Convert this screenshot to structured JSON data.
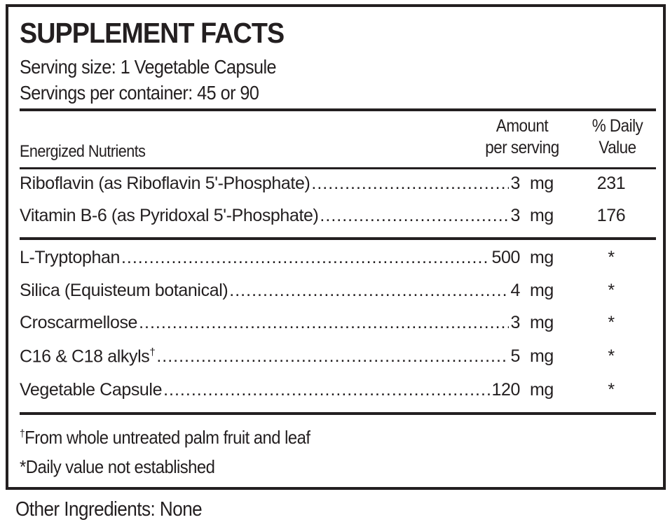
{
  "title": "SUPPLEMENT FACTS",
  "serving_size": "Serving size: 1 Vegetable Capsule",
  "servings_per_container": "Servings per container: 45 or 90",
  "header": {
    "section": "Energized Nutrients",
    "amount_line1": "Amount",
    "amount_line2": "per serving",
    "dv_line1": "% Daily",
    "dv_line2": "Value"
  },
  "group1": [
    {
      "name": "Riboflavin (as Riboflavin 5'-Phosphate)",
      "amount": "3",
      "unit": "mg",
      "dv": "231"
    },
    {
      "name": "Vitamin B-6 (as Pyridoxal 5'-Phosphate)",
      "amount": "3",
      "unit": "mg",
      "dv": "176"
    }
  ],
  "group2": [
    {
      "name": "L-Tryptophan",
      "amount": "500",
      "unit": "mg",
      "dv": "*"
    },
    {
      "name": "Silica (Equisteum botanical)",
      "amount": "4",
      "unit": "mg",
      "dv": "*"
    },
    {
      "name": "Croscarmellose",
      "amount": "3",
      "unit": "mg",
      "dv": "*"
    },
    {
      "name": "C16 & C18 alkyls",
      "sup": "†",
      "amount": "5",
      "unit": "mg",
      "dv": "*"
    },
    {
      "name": "Vegetable Capsule",
      "amount": "120",
      "unit": "mg",
      "dv": "*"
    }
  ],
  "footnotes": {
    "dagger_symbol": "†",
    "dagger_text": "From whole untreated palm fruit and leaf",
    "daily_value": "*Daily value not established"
  },
  "other_ingredients": "Other Ingredients: None"
}
